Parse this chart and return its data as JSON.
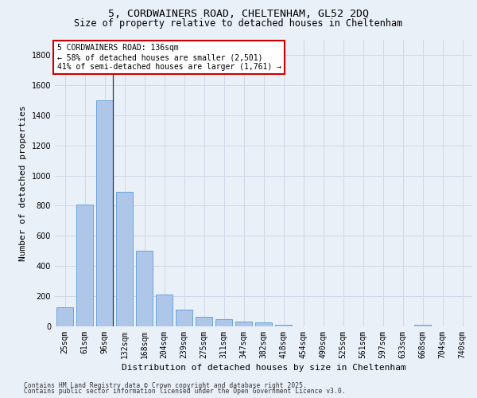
{
  "title_line1": "5, CORDWAINERS ROAD, CHELTENHAM, GL52 2DQ",
  "title_line2": "Size of property relative to detached houses in Cheltenham",
  "xlabel": "Distribution of detached houses by size in Cheltenham",
  "ylabel": "Number of detached properties",
  "categories": [
    "25sqm",
    "61sqm",
    "96sqm",
    "132sqm",
    "168sqm",
    "204sqm",
    "239sqm",
    "275sqm",
    "311sqm",
    "347sqm",
    "382sqm",
    "418sqm",
    "454sqm",
    "490sqm",
    "525sqm",
    "561sqm",
    "597sqm",
    "633sqm",
    "668sqm",
    "704sqm",
    "740sqm"
  ],
  "values": [
    125,
    805,
    1500,
    890,
    500,
    210,
    112,
    65,
    45,
    32,
    25,
    8,
    0,
    0,
    0,
    0,
    0,
    0,
    10,
    0,
    0
  ],
  "bar_color": "#aec6e8",
  "bar_edge_color": "#5b9bd5",
  "marker_line_index": 2,
  "annotation_title": "5 CORDWAINERS ROAD: 136sqm",
  "annotation_line2": "← 58% of detached houses are smaller (2,501)",
  "annotation_line3": "41% of semi-detached houses are larger (1,761) →",
  "annotation_box_facecolor": "#ffffff",
  "annotation_box_edgecolor": "#cc0000",
  "ylim": [
    0,
    1900
  ],
  "yticks": [
    0,
    200,
    400,
    600,
    800,
    1000,
    1200,
    1400,
    1600,
    1800
  ],
  "grid_color": "#d0d8e8",
  "background_color": "#eaf0f8",
  "footnote1": "Contains HM Land Registry data © Crown copyright and database right 2025.",
  "footnote2": "Contains public sector information licensed under the Open Government Licence v3.0.",
  "title_fontsize": 9.5,
  "subtitle_fontsize": 8.5,
  "axis_label_fontsize": 8,
  "tick_fontsize": 7,
  "annotation_fontsize": 7,
  "footnote_fontsize": 5.8
}
